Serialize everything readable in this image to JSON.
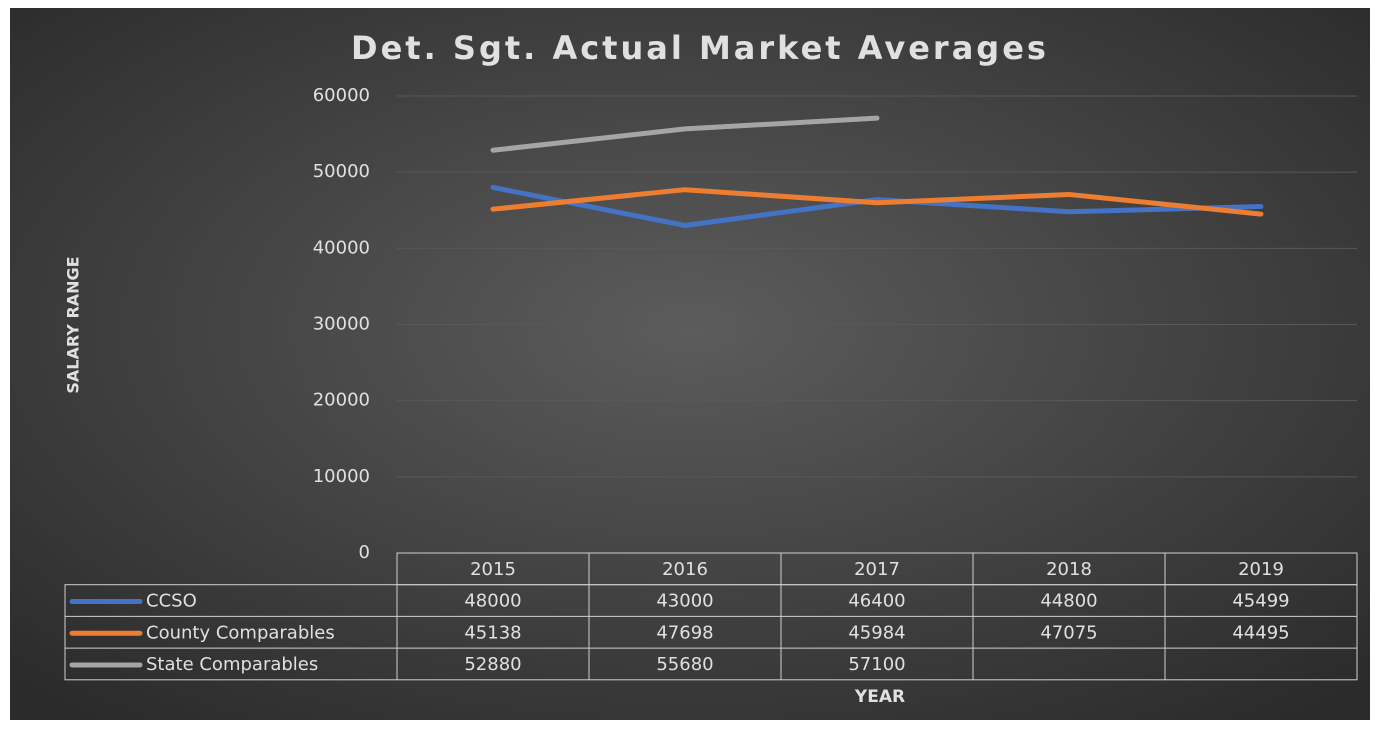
{
  "chart_data": {
    "type": "line",
    "title": "Det. Sgt. Actual Market Averages",
    "x_label": "YEAR",
    "y_label": "SALARY RANGE",
    "categories": [
      "2015",
      "2016",
      "2017",
      "2018",
      "2019"
    ],
    "series": [
      {
        "name": "CCSO",
        "color": "#4472c4",
        "values": [
          48000,
          43000,
          46400,
          44800,
          45499
        ]
      },
      {
        "name": "County Comparables",
        "color": "#ed7d31",
        "values": [
          45138,
          47698,
          45984,
          47075,
          44495
        ]
      },
      {
        "name": "State Comparables",
        "color": "#a5a5a5",
        "values": [
          52880,
          55680,
          57100,
          null,
          null
        ]
      }
    ],
    "ylim": [
      0,
      60000
    ],
    "yticks": [
      0,
      10000,
      20000,
      30000,
      40000,
      50000,
      60000
    ],
    "grid": true
  }
}
